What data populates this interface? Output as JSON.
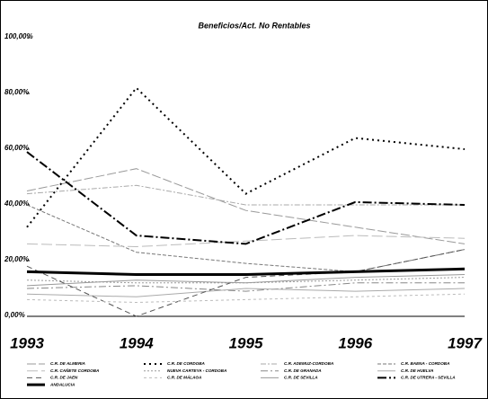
{
  "chart_data": {
    "type": "line",
    "title": "Beneficios/Act. No Rentables",
    "categories": [
      "1993",
      "1994",
      "1995",
      "1996",
      "1997"
    ],
    "ylim": [
      0,
      100
    ],
    "yticks": [
      {
        "value": 0,
        "label": "0,00%"
      },
      {
        "value": 20,
        "label": "20,00%"
      },
      {
        "value": 40,
        "label": "40,00%"
      },
      {
        "value": 60,
        "label": "60,00%"
      },
      {
        "value": 80,
        "label": "80,00%"
      },
      {
        "value": 100,
        "label": "100,00%"
      }
    ],
    "series": [
      {
        "name": "C.R. DE ALMERIA",
        "color": "#999999",
        "dash": "10 3",
        "width": 1,
        "values": [
          45,
          53,
          38,
          32,
          26
        ]
      },
      {
        "name": "C.R. DE CORDOBA",
        "color": "#000000",
        "dash": "2 4",
        "width": 2,
        "values": [
          32,
          82,
          44,
          64,
          60
        ]
      },
      {
        "name": "C.R. ADEMUZ-CORDOBA",
        "color": "#aaaaaa",
        "dash": "6 2 2 2",
        "width": 1,
        "values": [
          44,
          47,
          40,
          40,
          40
        ]
      },
      {
        "name": "C.R. BAENA - CORDOBA",
        "color": "#777777",
        "dash": "4 2",
        "width": 1,
        "values": [
          40,
          23,
          19,
          16,
          24
        ]
      },
      {
        "name": "C.R. CAÑETE CORDOBA",
        "color": "#bbbbbb",
        "dash": "12 4",
        "width": 1,
        "values": [
          26,
          25,
          27,
          29,
          28
        ]
      },
      {
        "name": "NUEVA CARTEYA - CORDOBA",
        "color": "#999999",
        "dash": "2 2",
        "width": 1,
        "values": [
          13,
          12,
          12,
          13,
          14
        ]
      },
      {
        "name": "C.R. DE GRANADA",
        "color": "#888888",
        "dash": "8 3 2 3",
        "width": 1,
        "values": [
          10,
          11,
          9,
          12,
          12
        ]
      },
      {
        "name": "C.R. DE HUELVA",
        "color": "#aaaaaa",
        "dash": "",
        "width": 1,
        "values": [
          8,
          7,
          10,
          9,
          10
        ]
      },
      {
        "name": "C.R. DE JAEN",
        "color": "#555555",
        "dash": "6 4",
        "width": 1,
        "values": [
          18,
          0,
          14,
          16,
          24
        ]
      },
      {
        "name": "C.R. DE MÁLAGA",
        "color": "#bbbbbb",
        "dash": "3 3",
        "width": 1,
        "values": [
          6,
          5,
          6,
          7,
          8
        ]
      },
      {
        "name": "C.R. DE SEVILLA",
        "color": "#999999",
        "dash": "",
        "width": 1,
        "values": [
          11,
          13,
          12,
          14,
          15
        ]
      },
      {
        "name": "C.R. DE UTRERA - SEVILLA",
        "color": "#000000",
        "dash": "10 3 2 3",
        "width": 2,
        "values": [
          59,
          29,
          26,
          41,
          40
        ]
      },
      {
        "name": "ANDALUCIA",
        "color": "#000000",
        "dash": "",
        "width": 3,
        "values": [
          16,
          15,
          15,
          16,
          17
        ]
      }
    ]
  }
}
